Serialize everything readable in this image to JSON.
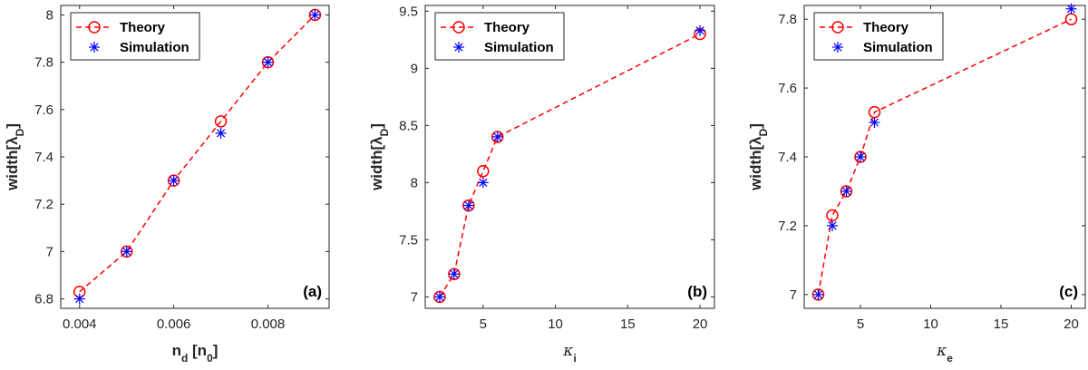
{
  "chart_data": [
    {
      "type": "line",
      "panel_label": "(a)",
      "xlabel": {
        "main": "n",
        "sub": "d",
        "tail": " [n",
        "tail_sub": "0",
        "end": "]"
      },
      "ylabel": {
        "main": "width[λ",
        "sub": "D",
        "end": "]"
      },
      "xlim": [
        0.0036,
        0.0093
      ],
      "ylim": [
        6.76,
        8.04
      ],
      "xticks": [
        0.004,
        0.006,
        0.008
      ],
      "xtick_labels": [
        "0.004",
        "0.006",
        "0.008"
      ],
      "yticks": [
        6.8,
        7,
        7.2,
        7.4,
        7.6,
        7.8,
        8
      ],
      "ytick_labels": [
        "6.8",
        "7",
        "7.2",
        "7.4",
        "7.6",
        "7.8",
        "8"
      ],
      "legend": "top-left",
      "series": [
        {
          "name": "Theory",
          "marker": "circle",
          "line": "dashed",
          "color": "#ff0000",
          "x": [
            0.004,
            0.005,
            0.006,
            0.007,
            0.008,
            0.009
          ],
          "y": [
            6.83,
            7.0,
            7.3,
            7.55,
            7.8,
            8.0
          ]
        },
        {
          "name": "Simulation",
          "marker": "asterisk",
          "line": "none",
          "color": "#0000ff",
          "x": [
            0.004,
            0.005,
            0.006,
            0.007,
            0.008,
            0.009
          ],
          "y": [
            6.8,
            7.0,
            7.3,
            7.5,
            7.8,
            8.0
          ]
        }
      ]
    },
    {
      "type": "line",
      "panel_label": "(b)",
      "xlabel": {
        "main": "κ",
        "sub": "i"
      },
      "ylabel": {
        "main": "width[λ",
        "sub": "D",
        "end": "]"
      },
      "xlim": [
        1,
        21
      ],
      "ylim": [
        6.9,
        9.55
      ],
      "xticks": [
        5,
        10,
        15,
        20
      ],
      "xtick_labels": [
        "5",
        "10",
        "15",
        "20"
      ],
      "yticks": [
        7,
        7.5,
        8,
        8.5,
        9,
        9.5
      ],
      "ytick_labels": [
        "7",
        "7.5",
        "8",
        "8.5",
        "9",
        "9.5"
      ],
      "legend": "top-left",
      "series": [
        {
          "name": "Theory",
          "marker": "circle",
          "line": "dashed",
          "color": "#ff0000",
          "x": [
            2,
            3,
            4,
            5,
            6,
            20
          ],
          "y": [
            7.0,
            7.2,
            7.8,
            8.1,
            8.4,
            9.3
          ]
        },
        {
          "name": "Simulation",
          "marker": "asterisk",
          "line": "none",
          "color": "#0000ff",
          "x": [
            2,
            3,
            4,
            5,
            6,
            20
          ],
          "y": [
            7.0,
            7.2,
            7.8,
            8.0,
            8.4,
            9.33
          ]
        }
      ]
    },
    {
      "type": "line",
      "panel_label": "(c)",
      "xlabel": {
        "main": "κ",
        "sub": "e"
      },
      "ylabel": {
        "main": "width[λ",
        "sub": "D",
        "end": "]"
      },
      "xlim": [
        1,
        21
      ],
      "ylim": [
        6.96,
        7.84
      ],
      "xticks": [
        5,
        10,
        15,
        20
      ],
      "xtick_labels": [
        "5",
        "10",
        "15",
        "20"
      ],
      "yticks": [
        7,
        7.2,
        7.4,
        7.6,
        7.8
      ],
      "ytick_labels": [
        "7",
        "7.2",
        "7.4",
        "7.6",
        "7.8"
      ],
      "legend": "top-left",
      "series": [
        {
          "name": "Theory",
          "marker": "circle",
          "line": "dashed",
          "color": "#ff0000",
          "x": [
            2,
            3,
            4,
            5,
            6,
            20
          ],
          "y": [
            7.0,
            7.23,
            7.3,
            7.4,
            7.53,
            7.8
          ]
        },
        {
          "name": "Simulation",
          "marker": "asterisk",
          "line": "none",
          "color": "#0000ff",
          "x": [
            2,
            3,
            4,
            5,
            6,
            20
          ],
          "y": [
            7.0,
            7.2,
            7.3,
            7.4,
            7.5,
            7.83
          ]
        }
      ]
    }
  ]
}
